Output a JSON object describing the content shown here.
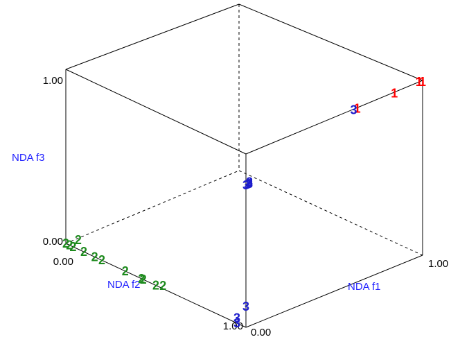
{
  "chart_data": {
    "type": "scatter",
    "projection": "3d-box",
    "grid": false,
    "axes": {
      "x": {
        "label": "NDA f1",
        "range": [
          0,
          1
        ],
        "ticks": [
          "0.00",
          "1.00"
        ]
      },
      "y": {
        "label": "NDA f2",
        "range": [
          0,
          1
        ],
        "ticks": [
          "0.00",
          "1.00"
        ]
      },
      "z": {
        "label": "NDA f3",
        "range": [
          0,
          1
        ],
        "ticks": [
          "0.00",
          "1.00"
        ]
      }
    },
    "series": [
      {
        "marker": "1",
        "color": "#ff0000",
        "points": [
          {
            "f1": 1.0,
            "f2": 0.0,
            "f3": 1.0
          },
          {
            "f1": 1.0,
            "f2": 0.02,
            "f3": 0.99
          },
          {
            "f1": 0.84,
            "f2": 0.0,
            "f3": 1.0
          },
          {
            "f1": 0.63,
            "f2": 0.0,
            "f3": 1.0
          }
        ]
      },
      {
        "marker": "3",
        "color": "#1c1ccc",
        "points": [
          {
            "f1": 0.61,
            "f2": 0.0,
            "f3": 1.0
          },
          {
            "f1": 0.0,
            "f2": 0.0,
            "f3": 0.82
          },
          {
            "f1": 0.01,
            "f2": 0.0,
            "f3": 0.82
          },
          {
            "f1": 0.02,
            "f2": 0.0,
            "f3": 0.83
          },
          {
            "f1": 0.02,
            "f2": 0.0,
            "f3": 0.82
          },
          {
            "f1": 0.0,
            "f2": 0.0,
            "f3": 0.12
          },
          {
            "f1": 0.0,
            "f2": 0.05,
            "f3": 0.03
          },
          {
            "f1": 0.0,
            "f2": 0.05,
            "f3": 0.0
          }
        ]
      },
      {
        "marker": "2",
        "color": "#1d8a1d",
        "points": [
          {
            "f1": 0.0,
            "f2": 0.58,
            "f3": 0.0
          },
          {
            "f1": 0.0,
            "f2": 0.57,
            "f3": 0.0
          },
          {
            "f1": 0.0,
            "f2": 0.5,
            "f3": 0.0
          },
          {
            "f1": 0.02,
            "f2": 0.48,
            "f3": 0.0
          },
          {
            "f1": 0.0,
            "f2": 0.67,
            "f3": 0.0
          },
          {
            "f1": 0.0,
            "f2": 0.8,
            "f3": 0.0
          },
          {
            "f1": 0.0,
            "f2": 0.84,
            "f3": 0.0
          },
          {
            "f1": 0.0,
            "f2": 0.96,
            "f3": 0.0
          },
          {
            "f1": 0.0,
            "f2": 0.9,
            "f3": 0.0
          },
          {
            "f1": 0.06,
            "f2": 0.99,
            "f3": 0.0
          },
          {
            "f1": 0.0,
            "f2": 0.96,
            "f3": 0.0
          },
          {
            "f1": 0.0,
            "f2": 0.98,
            "f3": 0.0
          },
          {
            "f1": 0.0,
            "f2": 1.0,
            "f3": 0.0
          }
        ]
      }
    ]
  }
}
